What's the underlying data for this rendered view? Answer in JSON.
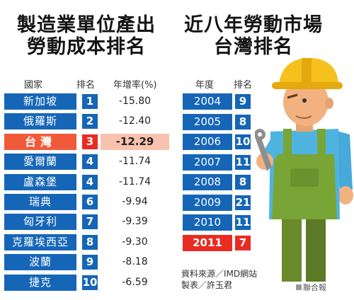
{
  "chart_data": [
    {
      "type": "table",
      "title": "製造業單位產出勞動成本排名",
      "columns": [
        "國家",
        "排名",
        "年增率(%)"
      ],
      "rows": [
        {
          "country": "新加坡",
          "rank": "1",
          "value": "-15.80"
        },
        {
          "country": "俄羅斯",
          "rank": "2",
          "value": "-12.40"
        },
        {
          "country": "台灣",
          "rank": "3",
          "value": "-12.29",
          "highlight": true
        },
        {
          "country": "愛爾蘭",
          "rank": "4",
          "value": "-11.74"
        },
        {
          "country": "盧森堡",
          "rank": "4",
          "value": "-11.74"
        },
        {
          "country": "瑞典",
          "rank": "6",
          "value": "-9.94"
        },
        {
          "country": "匈牙利",
          "rank": "7",
          "value": "-9.39"
        },
        {
          "country": "克羅埃西亞",
          "rank": "8",
          "value": "-9.30"
        },
        {
          "country": "波蘭",
          "rank": "9",
          "value": "-8.18"
        },
        {
          "country": "捷克",
          "rank": "10",
          "value": "-6.59"
        }
      ]
    },
    {
      "type": "table",
      "title": "近八年勞動市場台灣排名",
      "columns": [
        "年度",
        "排名"
      ],
      "rows": [
        {
          "year": "2004",
          "rank": "9"
        },
        {
          "year": "2005",
          "rank": "8"
        },
        {
          "year": "2006",
          "rank": "10"
        },
        {
          "year": "2007",
          "rank": "11"
        },
        {
          "year": "2008",
          "rank": "8"
        },
        {
          "year": "2009",
          "rank": "21"
        },
        {
          "year": "2010",
          "rank": "11"
        },
        {
          "year": "2011",
          "rank": "7",
          "highlight": true
        }
      ]
    }
  ],
  "titles": {
    "left_line1": "製造業單位產出",
    "left_line2": "勞動成本排名",
    "right_line1": "近八年勞動市場",
    "right_line2": "台灣排名"
  },
  "notes": {
    "source": "資料來源／IMD網站",
    "author": "製表／許玉君",
    "brand": "聯合報"
  },
  "colors": {
    "blue": "#1566b7",
    "red": "#ea2b22",
    "highlight_value_bg": "#f9c2ae"
  },
  "icons": {
    "illustration": "construction-worker-icon"
  }
}
